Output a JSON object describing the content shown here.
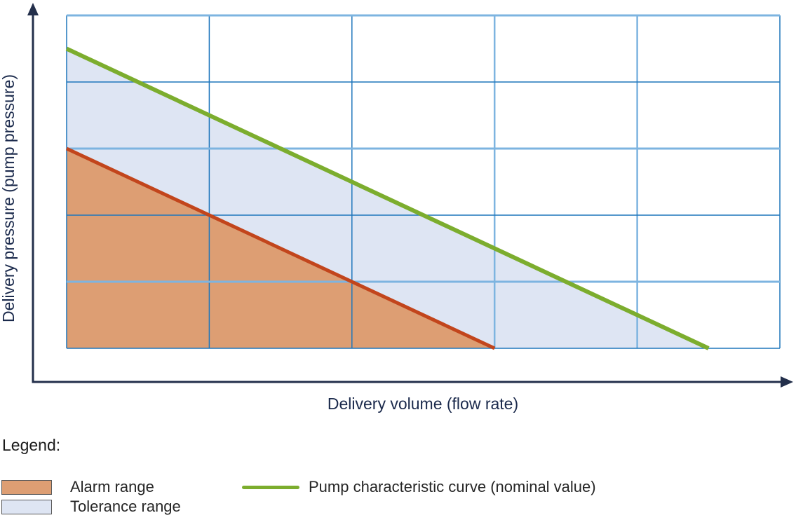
{
  "chart_data": {
    "type": "area",
    "title": "",
    "xlabel": "Delivery volume (flow rate)",
    "ylabel": "Delivery pressure (pump pressure)",
    "x_range": [
      0,
      5
    ],
    "y_range": [
      0,
      5
    ],
    "tick_labels": "none",
    "grid": {
      "columns": 5,
      "rows": 5,
      "line_color": "#1f76bc",
      "light_line_color": "#7db4e0",
      "light_horizontal_lines_at_y": [
        1,
        3,
        5
      ],
      "light_vertical_lines_at_x": [
        3,
        4
      ]
    },
    "axis_color": "#232f4b",
    "series": [
      {
        "name": "Pump characteristic curve (nominal value)",
        "color": "#7cad2e",
        "width": 6,
        "points": [
          [
            0,
            4.5
          ],
          [
            4.5,
            0
          ]
        ]
      },
      {
        "name": "Alarm range boundary",
        "color": "#c2451c",
        "width": 5,
        "points": [
          [
            0,
            3
          ],
          [
            3,
            0
          ]
        ]
      }
    ],
    "regions": [
      {
        "name": "Tolerance range",
        "color": "#dee5f3",
        "points": [
          [
            0,
            4.5
          ],
          [
            4.5,
            0
          ],
          [
            3,
            0
          ],
          [
            0,
            3
          ]
        ]
      },
      {
        "name": "Alarm range",
        "color": "#dd9e73",
        "points": [
          [
            0,
            3
          ],
          [
            3,
            0
          ],
          [
            0,
            0
          ]
        ]
      }
    ],
    "legend_position": "bottom"
  },
  "legend": {
    "title": "Legend:",
    "items": [
      {
        "label": "Alarm range",
        "swatch": "fill",
        "color": "#dd9e73",
        "border_color": "#595959"
      },
      {
        "label": "Tolerance range",
        "swatch": "fill",
        "color": "#dee5f3",
        "border_color": "#595959"
      },
      {
        "label": "Pump characteristic curve (nominal value)",
        "swatch": "line",
        "color": "#7cad2e"
      }
    ]
  }
}
